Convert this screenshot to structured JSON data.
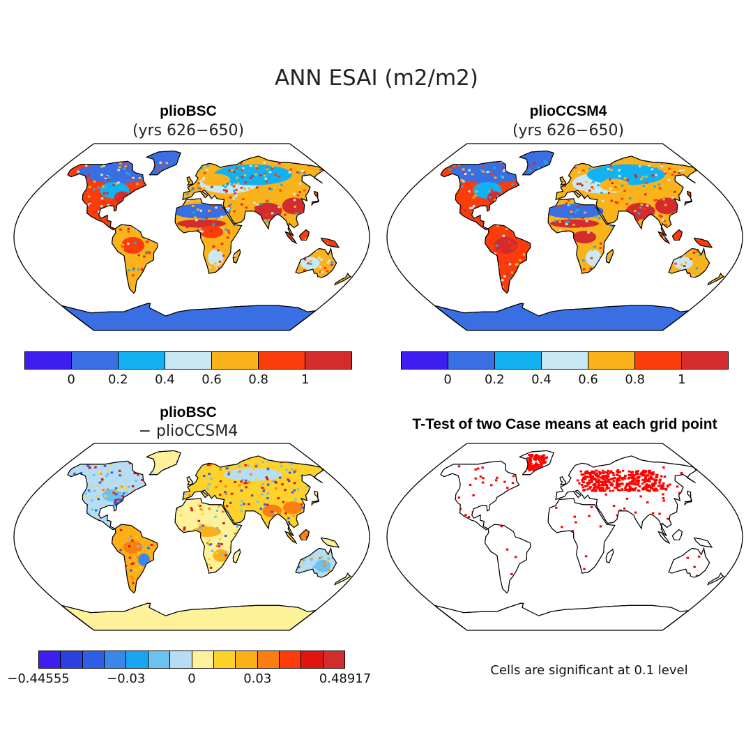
{
  "figure": {
    "title": "ANN ESAI (m2/m2)"
  },
  "panels": {
    "top_left": {
      "title": "plioBSC",
      "subtitle": "(yrs 626−650)"
    },
    "top_right": {
      "title": "plioCCSM4",
      "subtitle": "(yrs 626−650)"
    },
    "bottom_left": {
      "title": "plioBSC",
      "subtitle": "− plioCCSM4"
    },
    "bottom_right": {
      "title": "T-Test of two Case means at each grid point",
      "note": "Cells are significant at 0.1 level"
    }
  },
  "colorbars": {
    "abs": {
      "colors": [
        "#3d1df0",
        "#3a6fe3",
        "#12b2f2",
        "#c8e8f6",
        "#fbb31c",
        "#fb3c0b",
        "#d42c2c"
      ],
      "labels": [
        "0",
        "0.2",
        "0.4",
        "0.6",
        "0.8",
        "1"
      ]
    },
    "diff": {
      "colors": [
        "#3d1df0",
        "#2c3fe0",
        "#2f5ee6",
        "#3a86ea",
        "#16a6f4",
        "#6cc2ee",
        "#b6ddf4",
        "#fdf19a",
        "#fcd22b",
        "#fdaf18",
        "#fd7e10",
        "#fc3c0b",
        "#e21410",
        "#d42c2c"
      ],
      "labels": [
        "−0.44555",
        "−0.03",
        "0",
        "0.03",
        "0.48917"
      ]
    }
  },
  "map_colors": {
    "ocean": "#ffffff",
    "coast": "#000000",
    "significance": "#ff0000"
  }
}
